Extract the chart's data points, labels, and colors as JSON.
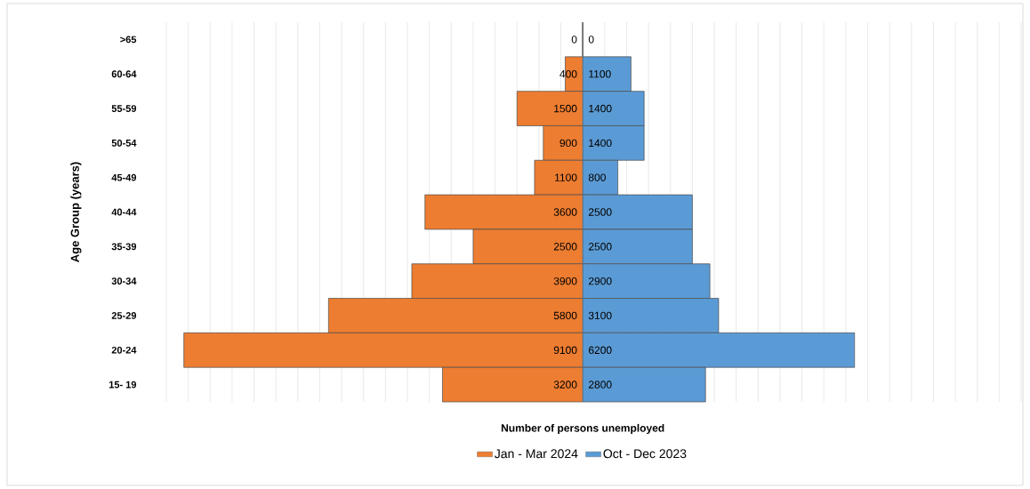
{
  "chart_data": [
    {
      "type": "bar",
      "orientation": "horizontal",
      "xlabel": "Number of persons unemployed",
      "ylabel": "Age Group (years)",
      "categories": [
        ">65",
        "60-64",
        "55-59",
        "50-54",
        "45-49",
        "40-44",
        "35-39",
        "30-34",
        "25-29",
        "20-24",
        "15- 19"
      ],
      "series": [
        {
          "name": "Jan - Mar 2024",
          "color": "#ed7d31",
          "values": [
            0,
            400,
            1500,
            900,
            1100,
            3600,
            2500,
            3900,
            5800,
            9100,
            3200
          ]
        }
      ],
      "xlim": [
        9500,
        0
      ],
      "xticks": [
        {
          "value": 9500,
          "label": null
        },
        {
          "value": 9000,
          "label": null
        },
        {
          "value": 8500,
          "label": null
        },
        {
          "value": 8000,
          "label": null
        },
        {
          "value": 7500,
          "label": null
        },
        {
          "value": 7000,
          "label": null
        },
        {
          "value": 6500,
          "label": null
        },
        {
          "value": 6000,
          "label": null
        },
        {
          "value": 5500,
          "label": null
        },
        {
          "value": 5000,
          "label": null
        },
        {
          "value": 4500,
          "label": null
        },
        {
          "value": 4000,
          "label": null
        },
        {
          "value": 3500,
          "label": null
        },
        {
          "value": 3000,
          "label": null
        },
        {
          "value": 2500,
          "label": null
        },
        {
          "value": 2000,
          "label": null
        },
        {
          "value": 1500,
          "label": null
        },
        {
          "value": 1000,
          "label": null
        },
        {
          "value": 500,
          "label": null
        },
        {
          "value": 0,
          "label": null
        }
      ],
      "tick_labels": "y",
      "grid": "x",
      "legend": "bottom",
      "data_labels": true
    },
    {
      "type": "bar",
      "orientation": "horizontal",
      "categories": [
        null,
        null,
        null,
        null,
        null,
        null,
        null,
        null,
        null,
        null,
        null
      ],
      "series": [
        {
          "name": "Oct - Dec 2023",
          "color": "#5b9bd5",
          "values": [
            0,
            1100,
            1400,
            1400,
            800,
            2500,
            2500,
            2900,
            3100,
            6200,
            2800
          ]
        }
      ],
      "xlim": [
        0,
        10000
      ],
      "xticks": [
        {
          "value": 0,
          "label": null
        },
        {
          "value": 500,
          "label": null
        },
        {
          "value": 1000,
          "label": null
        },
        {
          "value": 1500,
          "label": null
        },
        {
          "value": 2000,
          "label": null
        },
        {
          "value": 2500,
          "label": null
        },
        {
          "value": 3000,
          "label": null
        },
        {
          "value": 3500,
          "label": null
        },
        {
          "value": 4000,
          "label": null
        },
        {
          "value": 4500,
          "label": null
        },
        {
          "value": 5000,
          "label": null
        },
        {
          "value": 5500,
          "label": null
        },
        {
          "value": 6000,
          "label": null
        },
        {
          "value": 6500,
          "label": null
        },
        {
          "value": 7000,
          "label": null
        },
        {
          "value": 7500,
          "label": null
        },
        {
          "value": 8000,
          "label": null
        },
        {
          "value": 8500,
          "label": null
        },
        {
          "value": 9000,
          "label": null
        },
        {
          "value": 9500,
          "label": null
        },
        {
          "value": 10000,
          "label": null
        }
      ],
      "tick_labels": false,
      "grid": "x",
      "legend": "bottom",
      "data_labels": true
    }
  ]
}
